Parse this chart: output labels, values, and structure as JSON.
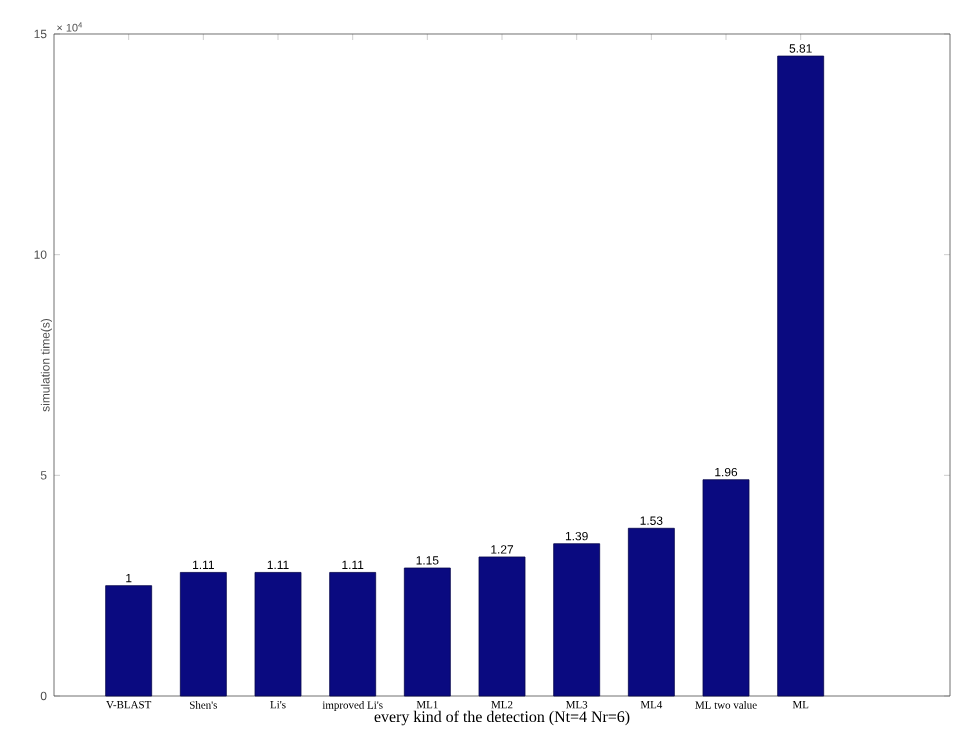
{
  "chart_data": {
    "type": "bar",
    "xlabel": "every kind of the detection (Nt=4 Nr=6)",
    "ylabel": "simulation time(s)",
    "categories": [
      "V-BLAST",
      "Shen's",
      "Li's",
      "improved Li's",
      "ML1",
      "ML2",
      "ML3",
      "ML4",
      "ML two value",
      "ML"
    ],
    "values": [
      2.5,
      2.8,
      2.8,
      2.8,
      2.9,
      3.15,
      3.45,
      3.8,
      4.9,
      14.5
    ],
    "color": "#0a0a80",
    "ylim": [
      0,
      15
    ],
    "yticks": [
      0,
      5,
      10,
      15
    ],
    "annotations": [
      "× 10$^{4}$",
      {
        "text": "1",
        "x": "V-BLAST",
        "y": 2.5
      },
      {
        "text": "1.11",
        "x": "Shen's",
        "y": 2.8
      },
      {
        "text": "1.11",
        "x": "Li's",
        "y": 2.8
      },
      {
        "text": "1.11",
        "x": "improved Li's",
        "y": 2.8
      },
      {
        "text": "1.15",
        "x": "ML1",
        "y": 2.9
      },
      {
        "text": "1.27",
        "x": "ML2",
        "y": 3.15
      },
      {
        "text": "1.39",
        "x": "ML3",
        "y": 3.45
      },
      {
        "text": "1.53",
        "x": "ML4",
        "y": 3.8
      },
      {
        "text": "1.96",
        "x": "ML two value",
        "y": 4.9
      },
      {
        "text": "5.81",
        "x": "ML",
        "y": 14.5
      }
    ]
  }
}
